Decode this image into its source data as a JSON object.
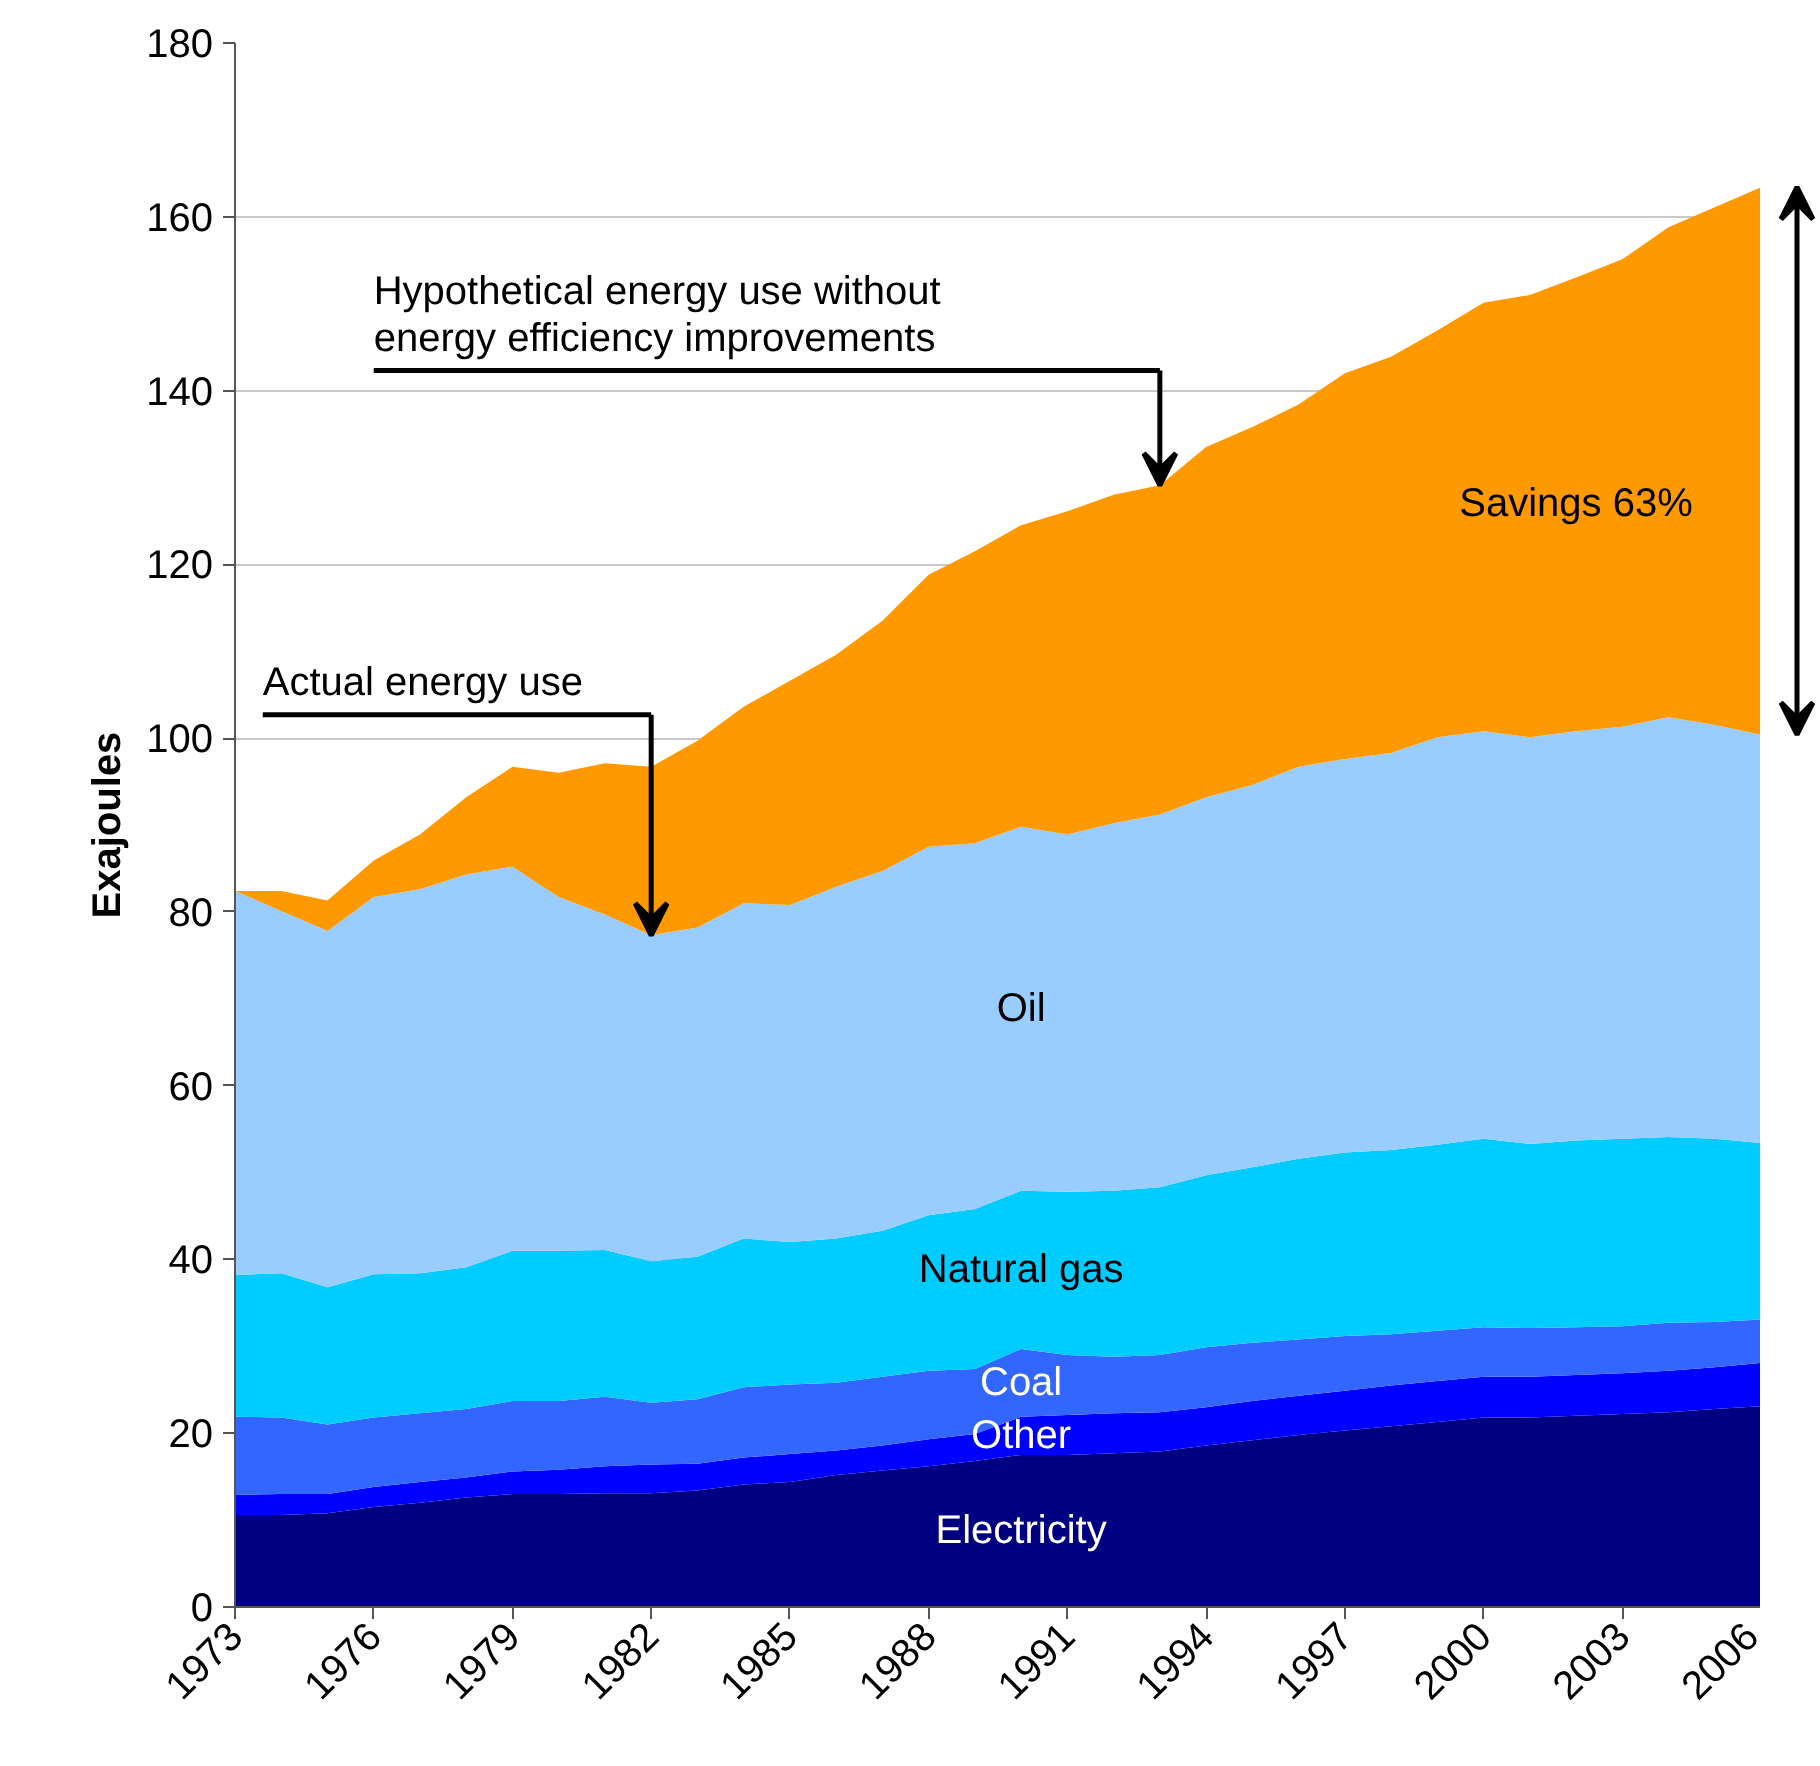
{
  "chart_data": {
    "type": "area",
    "stacked": true,
    "ylabel": "Exajoules",
    "x": [
      1973,
      1974,
      1975,
      1976,
      1977,
      1978,
      1979,
      1980,
      1981,
      1982,
      1983,
      1984,
      1985,
      1986,
      1987,
      1988,
      1989,
      1990,
      1991,
      1992,
      1993,
      1994,
      1995,
      1996,
      1997,
      1998,
      1999,
      2000,
      2001,
      2002,
      2003,
      2004,
      2005,
      2006
    ],
    "xlim": [
      1973,
      2006
    ],
    "xticks": [
      1973,
      1976,
      1979,
      1982,
      1985,
      1988,
      1991,
      1994,
      1997,
      2000,
      2003,
      2006
    ],
    "ylim": [
      0,
      180
    ],
    "yticks": [
      0,
      20,
      40,
      60,
      80,
      100,
      120,
      140,
      160,
      180
    ],
    "grid": "y",
    "legend": false,
    "series": [
      {
        "name": "Electricity",
        "color": "#000080",
        "values": [
          10.6,
          10.6,
          10.8,
          11.5,
          12.0,
          12.6,
          13.0,
          13.0,
          13.1,
          13.1,
          13.4,
          14.1,
          14.4,
          15.2,
          15.7,
          16.2,
          16.8,
          17.5,
          17.5,
          17.7,
          17.9,
          18.6,
          19.2,
          19.8,
          20.3,
          20.8,
          21.3,
          21.8,
          21.8,
          22.0,
          22.2,
          22.4,
          22.8,
          23.1
        ]
      },
      {
        "name": "Other",
        "color": "#0000ff",
        "values": [
          2.3,
          2.4,
          2.2,
          2.3,
          2.4,
          2.3,
          2.6,
          2.8,
          3.1,
          3.3,
          3.1,
          3.1,
          3.2,
          2.8,
          2.9,
          3.1,
          3.1,
          4.4,
          4.6,
          4.6,
          4.5,
          4.4,
          4.5,
          4.5,
          4.6,
          4.7,
          4.7,
          4.7,
          4.7,
          4.7,
          4.7,
          4.8,
          4.8,
          5.0
        ]
      },
      {
        "name": "Coal",
        "color": "#3366ff",
        "values": [
          9.0,
          8.8,
          8.0,
          8.0,
          7.9,
          7.9,
          8.1,
          7.9,
          8.0,
          7.1,
          7.4,
          8.1,
          8.0,
          7.8,
          7.9,
          7.9,
          7.5,
          7.8,
          6.9,
          6.5,
          6.6,
          6.9,
          6.7,
          6.5,
          6.3,
          5.9,
          5.8,
          5.7,
          5.6,
          5.5,
          5.4,
          5.5,
          5.2,
          5.0
        ]
      },
      {
        "name": "Natural gas",
        "color": "#00ccff",
        "values": [
          16.3,
          16.6,
          15.8,
          16.5,
          16.1,
          16.3,
          17.3,
          17.3,
          16.9,
          16.3,
          16.4,
          17.1,
          16.4,
          16.6,
          16.8,
          17.9,
          18.4,
          18.2,
          18.8,
          19.1,
          19.3,
          19.8,
          20.2,
          20.8,
          21.1,
          21.2,
          21.4,
          21.7,
          21.2,
          21.5,
          21.6,
          21.4,
          21.1,
          20.3
        ]
      },
      {
        "name": "Oil",
        "color": "#99ccff",
        "values": [
          44.2,
          41.7,
          41.0,
          43.4,
          44.2,
          45.2,
          44.2,
          40.7,
          38.6,
          37.5,
          37.9,
          38.6,
          38.8,
          40.5,
          41.4,
          42.4,
          42.1,
          41.9,
          41.1,
          42.3,
          42.9,
          43.5,
          44.0,
          45.1,
          45.3,
          45.7,
          46.9,
          46.9,
          46.8,
          47.1,
          47.4,
          48.3,
          47.6,
          47.0
        ]
      },
      {
        "color": "#ff9900",
        "values": [
          0,
          2.3,
          3.5,
          4.2,
          6.3,
          8.9,
          11.5,
          14.3,
          17.4,
          19.4,
          21.5,
          22.6,
          25.8,
          26.7,
          28.8,
          31.3,
          33.6,
          34.7,
          37.2,
          37.8,
          37.9,
          40.3,
          41.2,
          41.7,
          44.4,
          45.6,
          46.8,
          49.3,
          50.9,
          52.2,
          53.8,
          56.4,
          59.6,
          63.0
        ]
      }
    ],
    "annotations": [
      "Hypothetical energy use without energy efficiency improvements",
      "Actual energy use",
      "Savings 63%"
    ]
  }
}
